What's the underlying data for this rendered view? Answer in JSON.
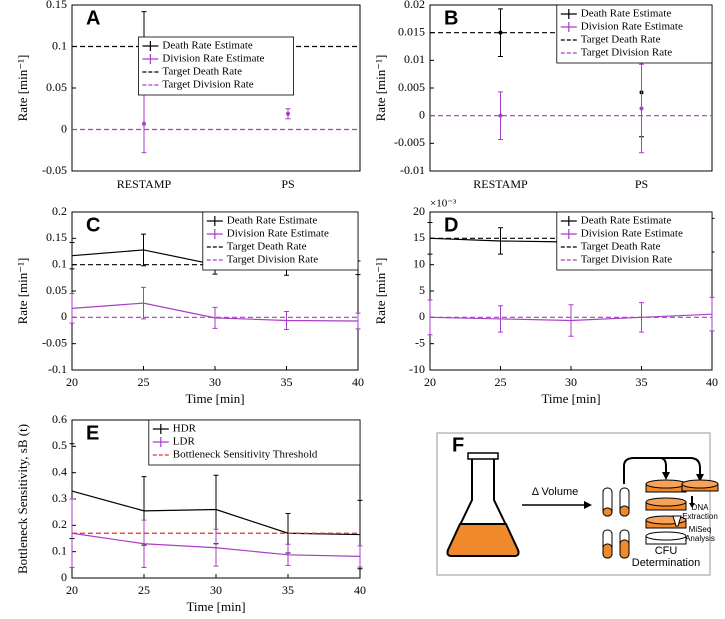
{
  "chart_data": [
    {
      "type": "errorbar",
      "title": "A",
      "ylabel": "Rate [min⁻¹]",
      "categories": [
        "RESTAMP",
        "PS"
      ],
      "ylim": [
        -0.05,
        0.15
      ],
      "yticks": [
        -0.05,
        0,
        0.05,
        0.1,
        0.15
      ],
      "legend": "upper center",
      "series": [
        {
          "name": "Death Rate Estimate",
          "color": "#000000",
          "values": [
            0.107,
            0.096
          ],
          "errors": [
            0.035,
            0.007
          ]
        },
        {
          "name": "Division Rate Estimate",
          "color": "#a83fc6",
          "values": [
            0.007,
            0.019
          ],
          "errors": [
            0.035,
            0.006
          ]
        },
        {
          "name": "Target Death Rate",
          "color": "#000000",
          "value": 0.1,
          "linestyle": "dashed"
        },
        {
          "name": "Target Division Rate",
          "color": "#a83fc6",
          "value": 0,
          "linestyle": "dashed"
        }
      ]
    },
    {
      "type": "errorbar",
      "title": "B",
      "ylabel": "Rate [min⁻¹]",
      "categories": [
        "RESTAMP",
        "PS"
      ],
      "ylim": [
        -0.01,
        0.02
      ],
      "yticks": [
        -0.01,
        -0.005,
        0,
        0.005,
        0.01,
        0.015,
        0.02
      ],
      "legend": "upper right",
      "series": [
        {
          "name": "Death Rate Estimate",
          "color": "#000000",
          "values": [
            0.015,
            0.0042
          ],
          "errors": [
            0.0043,
            0.008
          ]
        },
        {
          "name": "Division Rate Estimate",
          "color": "#a83fc6",
          "values": [
            0,
            0.0013
          ],
          "errors": [
            0.0043,
            0.008
          ]
        },
        {
          "name": "Target Death Rate",
          "color": "#000000",
          "value": 0.015,
          "linestyle": "dashed"
        },
        {
          "name": "Target Division Rate",
          "color": "#a83fc6",
          "value": 0,
          "linestyle": "dashed"
        }
      ]
    },
    {
      "type": "line",
      "title": "C",
      "ylabel": "Rate [min⁻¹]",
      "xlabel": "Time [min]",
      "x": [
        20,
        25,
        30,
        35,
        40
      ],
      "xlim": [
        20,
        40
      ],
      "xticks": [
        20,
        25,
        30,
        35,
        40
      ],
      "ylim": [
        -0.1,
        0.2
      ],
      "yticks": [
        -0.1,
        -0.05,
        0,
        0.05,
        0.1,
        0.15,
        0.2
      ],
      "legend": "upper right",
      "series": [
        {
          "name": "Death Rate Estimate",
          "color": "#000000",
          "values": [
            0.117,
            0.128,
            0.1,
            0.095,
            0.094
          ],
          "errors": [
            0.025,
            0.03,
            0.018,
            0.015,
            0.013
          ]
        },
        {
          "name": "Division Rate Estimate",
          "color": "#a83fc6",
          "values": [
            0.017,
            0.027,
            -0.001,
            -0.006,
            -0.007
          ],
          "errors": [
            0.028,
            0.03,
            0.02,
            0.017,
            0.015
          ]
        },
        {
          "name": "Target Death Rate",
          "color": "#000000",
          "value": 0.1,
          "linestyle": "dashed"
        },
        {
          "name": "Target Division Rate",
          "color": "#a83fc6",
          "value": 0,
          "linestyle": "dashed"
        }
      ]
    },
    {
      "type": "line",
      "title": "D",
      "ylabel": "Rate [min⁻¹]",
      "xlabel": "Time [min]",
      "y_multiplier": "×10⁻³",
      "x": [
        20,
        25,
        30,
        35,
        40
      ],
      "xlim": [
        20,
        40
      ],
      "xticks": [
        20,
        25,
        30,
        35,
        40
      ],
      "ylim": [
        -10,
        20
      ],
      "yticks": [
        -10,
        -5,
        0,
        5,
        10,
        15,
        20
      ],
      "legend": "upper right",
      "series": [
        {
          "name": "Death Rate Estimate",
          "color": "#000000",
          "values": [
            15,
            14.5,
            14.3,
            14.9,
            15.6
          ],
          "errors": [
            3,
            2.5,
            2.8,
            2.8,
            3.2
          ]
        },
        {
          "name": "Division Rate Estimate",
          "color": "#a83fc6",
          "values": [
            0,
            -0.3,
            -0.6,
            0,
            0.6
          ],
          "errors": [
            3.3,
            2.5,
            3,
            2.8,
            3.2
          ]
        },
        {
          "name": "Target Death Rate",
          "color": "#000000",
          "value": 15,
          "linestyle": "dashed"
        },
        {
          "name": "Target Division Rate",
          "color": "#a83fc6",
          "value": 0,
          "linestyle": "dashed"
        }
      ]
    },
    {
      "type": "line",
      "title": "E",
      "ylabel": "Bottleneck Sensitivity, sB (t)",
      "xlabel": "Time [min]",
      "x": [
        20,
        25,
        30,
        35,
        40
      ],
      "xlim": [
        20,
        40
      ],
      "xticks": [
        20,
        25,
        30,
        35,
        40
      ],
      "ylim": [
        0,
        0.6
      ],
      "yticks": [
        0,
        0.1,
        0.2,
        0.3,
        0.4,
        0.5,
        0.6
      ],
      "legend": "upper right",
      "series": [
        {
          "name": "HDR",
          "color": "#000000",
          "values": [
            0.33,
            0.255,
            0.26,
            0.17,
            0.165
          ],
          "errors": [
            0.18,
            0.13,
            0.13,
            0.075,
            0.13
          ]
        },
        {
          "name": "LDR",
          "color": "#a83fc6",
          "values": [
            0.17,
            0.13,
            0.115,
            0.088,
            0.082
          ],
          "errors": [
            0.13,
            0.09,
            0.07,
            0.04,
            0.04
          ]
        },
        {
          "name": "Bottleneck Sensitivity Threshold",
          "color": "#e8302a",
          "value": 0.17,
          "linestyle": "dashed"
        }
      ]
    }
  ],
  "diagram": {
    "title": "F",
    "volume_label": "Δ Volume",
    "cfu_label": [
      "CFU",
      "Determination"
    ],
    "dna_label": [
      "DNA",
      "Extraction"
    ],
    "miseq_label": [
      "MiSeq",
      "Analysis"
    ]
  }
}
